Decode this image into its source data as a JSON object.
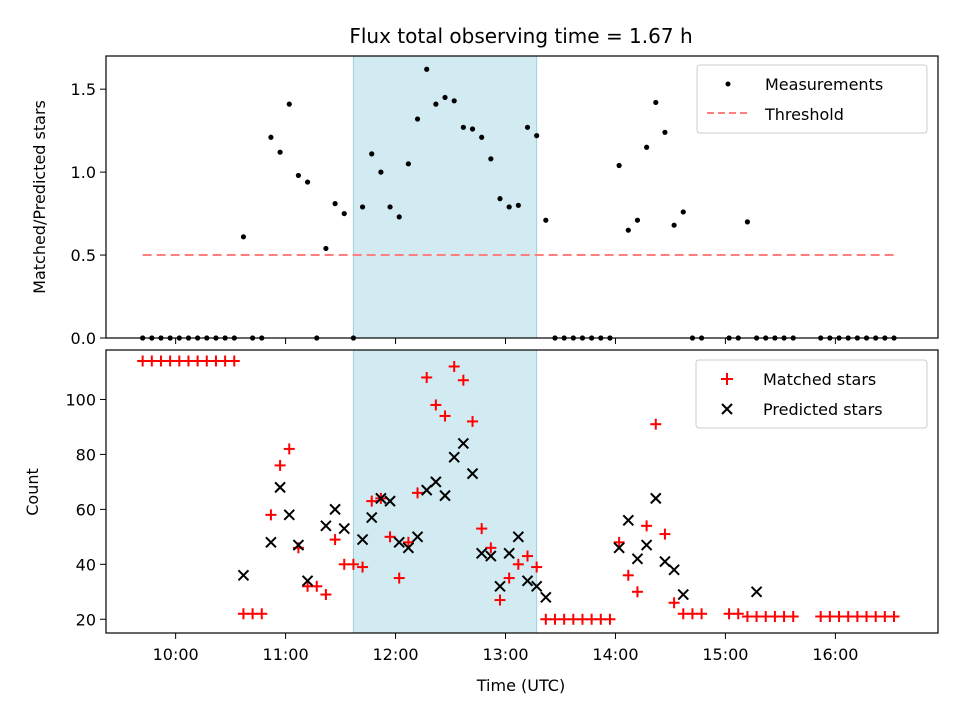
{
  "chart_data": [
    {
      "type": "scatter",
      "title": "Flux total observing time = 1.67 h",
      "xlabel": "",
      "ylabel": "Matched/Predicted stars",
      "xlim": [
        "09:22",
        "16:56"
      ],
      "ylim": [
        0,
        1.7
      ],
      "yticks": [
        "0.0",
        "0.5",
        "1.0",
        "1.5"
      ],
      "grid": false,
      "legend": "top-right",
      "highlight_span": [
        "11:37",
        "13:17"
      ],
      "highlight_color": "#add8e6",
      "series": [
        {
          "name": "Measurements",
          "color": "#000000",
          "marker": "dot",
          "points": [
            [
              "09:42",
              0
            ],
            [
              "09:47",
              0
            ],
            [
              "09:52",
              0
            ],
            [
              "09:57",
              0
            ],
            [
              "10:02",
              0
            ],
            [
              "10:07",
              0
            ],
            [
              "10:12",
              0
            ],
            [
              "10:17",
              0
            ],
            [
              "10:22",
              0
            ],
            [
              "10:27",
              0
            ],
            [
              "10:32",
              0
            ],
            [
              "10:37",
              0.61
            ],
            [
              "10:42",
              0
            ],
            [
              "10:47",
              0
            ],
            [
              "10:52",
              1.21
            ],
            [
              "10:57",
              1.12
            ],
            [
              "11:02",
              1.41
            ],
            [
              "11:07",
              0.98
            ],
            [
              "11:12",
              0.94
            ],
            [
              "11:17",
              0
            ],
            [
              "11:22",
              0.54
            ],
            [
              "11:27",
              0.81
            ],
            [
              "11:32",
              0.75
            ],
            [
              "11:37",
              0
            ],
            [
              "11:42",
              0.79
            ],
            [
              "11:47",
              1.11
            ],
            [
              "11:52",
              1.0
            ],
            [
              "11:57",
              0.79
            ],
            [
              "12:02",
              0.73
            ],
            [
              "12:07",
              1.05
            ],
            [
              "12:12",
              1.32
            ],
            [
              "12:17",
              1.62
            ],
            [
              "12:22",
              1.41
            ],
            [
              "12:27",
              1.45
            ],
            [
              "12:32",
              1.43
            ],
            [
              "12:37",
              1.27
            ],
            [
              "12:42",
              1.26
            ],
            [
              "12:47",
              1.21
            ],
            [
              "12:52",
              1.08
            ],
            [
              "12:57",
              0.84
            ],
            [
              "13:02",
              0.79
            ],
            [
              "13:07",
              0.8
            ],
            [
              "13:12",
              1.27
            ],
            [
              "13:17",
              1.22
            ],
            [
              "13:22",
              0.71
            ],
            [
              "13:27",
              0
            ],
            [
              "13:32",
              0
            ],
            [
              "13:37",
              0
            ],
            [
              "13:42",
              0
            ],
            [
              "13:47",
              0
            ],
            [
              "13:52",
              0
            ],
            [
              "13:57",
              0
            ],
            [
              "14:02",
              1.04
            ],
            [
              "14:07",
              0.65
            ],
            [
              "14:12",
              0.71
            ],
            [
              "14:17",
              1.15
            ],
            [
              "14:22",
              1.42
            ],
            [
              "14:27",
              1.24
            ],
            [
              "14:32",
              0.68
            ],
            [
              "14:37",
              0.76
            ],
            [
              "14:42",
              0
            ],
            [
              "14:47",
              0
            ],
            [
              "15:02",
              0
            ],
            [
              "15:07",
              0
            ],
            [
              "15:12",
              0.7
            ],
            [
              "15:17",
              0
            ],
            [
              "15:22",
              0
            ],
            [
              "15:27",
              0
            ],
            [
              "15:32",
              0
            ],
            [
              "15:37",
              0
            ],
            [
              "15:52",
              0
            ],
            [
              "15:57",
              0
            ],
            [
              "16:02",
              0
            ],
            [
              "16:07",
              0
            ],
            [
              "16:12",
              0
            ],
            [
              "16:17",
              0
            ],
            [
              "16:22",
              0
            ],
            [
              "16:27",
              0
            ],
            [
              "16:32",
              0
            ]
          ]
        },
        {
          "name": "Threshold",
          "color": "#ff7f7f",
          "style": "dashed",
          "points": [
            [
              "09:42",
              0.5
            ],
            [
              "16:32",
              0.5
            ]
          ]
        }
      ]
    },
    {
      "type": "scatter",
      "title": "",
      "xlabel": "Time (UTC)",
      "ylabel": "Count",
      "xlim": [
        "09:22",
        "16:56"
      ],
      "ylim": [
        15,
        118
      ],
      "xticks": [
        "10:00",
        "11:00",
        "12:00",
        "13:00",
        "14:00",
        "15:00",
        "16:00"
      ],
      "yticks": [
        "20",
        "40",
        "60",
        "80",
        "100"
      ],
      "grid": false,
      "legend": "top-right",
      "highlight_span": [
        "11:37",
        "13:17"
      ],
      "highlight_color": "#add8e6",
      "series": [
        {
          "name": "Matched stars",
          "color": "#ff0000",
          "marker": "plus",
          "points": [
            [
              "09:42",
              114
            ],
            [
              "09:47",
              114
            ],
            [
              "09:52",
              114
            ],
            [
              "09:57",
              114
            ],
            [
              "10:02",
              114
            ],
            [
              "10:07",
              114
            ],
            [
              "10:12",
              114
            ],
            [
              "10:17",
              114
            ],
            [
              "10:22",
              114
            ],
            [
              "10:27",
              114
            ],
            [
              "10:32",
              114
            ],
            [
              "10:37",
              22
            ],
            [
              "10:42",
              22
            ],
            [
              "10:47",
              22
            ],
            [
              "10:52",
              58
            ],
            [
              "10:57",
              76
            ],
            [
              "11:02",
              82
            ],
            [
              "11:07",
              46
            ],
            [
              "11:12",
              32
            ],
            [
              "11:17",
              32
            ],
            [
              "11:22",
              29
            ],
            [
              "11:27",
              49
            ],
            [
              "11:32",
              40
            ],
            [
              "11:37",
              40
            ],
            [
              "11:42",
              39
            ],
            [
              "11:47",
              63
            ],
            [
              "11:52",
              64
            ],
            [
              "11:57",
              50
            ],
            [
              "12:02",
              35
            ],
            [
              "12:07",
              48
            ],
            [
              "12:12",
              66
            ],
            [
              "12:17",
              108
            ],
            [
              "12:22",
              98
            ],
            [
              "12:27",
              94
            ],
            [
              "12:32",
              112
            ],
            [
              "12:37",
              107
            ],
            [
              "12:42",
              92
            ],
            [
              "12:47",
              53
            ],
            [
              "12:52",
              46
            ],
            [
              "12:57",
              27
            ],
            [
              "13:02",
              35
            ],
            [
              "13:07",
              40
            ],
            [
              "13:12",
              43
            ],
            [
              "13:17",
              39
            ],
            [
              "13:22",
              20
            ],
            [
              "13:27",
              20
            ],
            [
              "13:32",
              20
            ],
            [
              "13:37",
              20
            ],
            [
              "13:42",
              20
            ],
            [
              "13:47",
              20
            ],
            [
              "13:52",
              20
            ],
            [
              "13:57",
              20
            ],
            [
              "14:02",
              48
            ],
            [
              "14:07",
              36
            ],
            [
              "14:12",
              30
            ],
            [
              "14:17",
              54
            ],
            [
              "14:22",
              91
            ],
            [
              "14:27",
              51
            ],
            [
              "14:32",
              26
            ],
            [
              "14:37",
              22
            ],
            [
              "14:42",
              22
            ],
            [
              "14:47",
              22
            ],
            [
              "15:02",
              22
            ],
            [
              "15:07",
              22
            ],
            [
              "15:12",
              21
            ],
            [
              "15:17",
              21
            ],
            [
              "15:22",
              21
            ],
            [
              "15:27",
              21
            ],
            [
              "15:32",
              21
            ],
            [
              "15:37",
              21
            ],
            [
              "15:52",
              21
            ],
            [
              "15:57",
              21
            ],
            [
              "16:02",
              21
            ],
            [
              "16:07",
              21
            ],
            [
              "16:12",
              21
            ],
            [
              "16:17",
              21
            ],
            [
              "16:22",
              21
            ],
            [
              "16:27",
              21
            ],
            [
              "16:32",
              21
            ]
          ]
        },
        {
          "name": "Predicted stars",
          "color": "#000000",
          "marker": "x",
          "points": [
            [
              "10:37",
              36
            ],
            [
              "10:52",
              48
            ],
            [
              "10:57",
              68
            ],
            [
              "11:02",
              58
            ],
            [
              "11:07",
              47
            ],
            [
              "11:12",
              34
            ],
            [
              "11:22",
              54
            ],
            [
              "11:27",
              60
            ],
            [
              "11:32",
              53
            ],
            [
              "11:42",
              49
            ],
            [
              "11:47",
              57
            ],
            [
              "11:52",
              64
            ],
            [
              "11:57",
              63
            ],
            [
              "12:02",
              48
            ],
            [
              "12:07",
              46
            ],
            [
              "12:12",
              50
            ],
            [
              "12:17",
              67
            ],
            [
              "12:22",
              70
            ],
            [
              "12:27",
              65
            ],
            [
              "12:32",
              79
            ],
            [
              "12:37",
              84
            ],
            [
              "12:42",
              73
            ],
            [
              "12:47",
              44
            ],
            [
              "12:52",
              43
            ],
            [
              "12:57",
              32
            ],
            [
              "13:02",
              44
            ],
            [
              "13:07",
              50
            ],
            [
              "13:12",
              34
            ],
            [
              "13:17",
              32
            ],
            [
              "13:22",
              28
            ],
            [
              "14:02",
              46
            ],
            [
              "14:07",
              56
            ],
            [
              "14:12",
              42
            ],
            [
              "14:17",
              47
            ],
            [
              "14:22",
              64
            ],
            [
              "14:27",
              41
            ],
            [
              "14:32",
              38
            ],
            [
              "14:37",
              29
            ],
            [
              "15:17",
              30
            ]
          ]
        }
      ]
    }
  ]
}
